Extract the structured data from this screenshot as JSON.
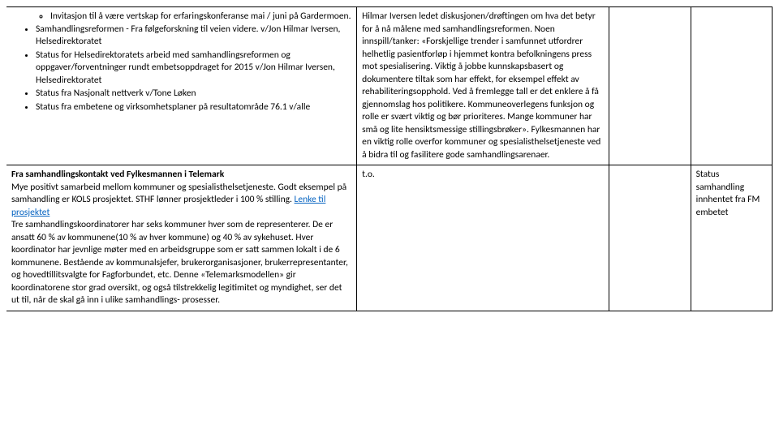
{
  "row1": {
    "col1": {
      "sub_item": "Invitasjon til å være vertskap for erfaringskonferanse mai / juni på Gardermoen.",
      "bullets": [
        "Samhandlingsreformen - Fra følgeforskning til veien videre. v/Jon Hilmar Iversen, Helsedirektoratet",
        "Status for Helsedirektoratets arbeid med samhandlingsreformen og oppgaver/forventninger rundt embetsoppdraget for 2015 v/Jon Hilmar Iversen, Helsedirektoratet",
        "Status fra Nasjonalt nettverk v/Tone Løken",
        "Status fra embetene og virksomhetsplaner på resultatområde 76.1 v/alle"
      ]
    },
    "col2": "Hilmar Iversen ledet diskusjonen/drøftingen om hva det betyr for å nå målene med samhandlingsreformen. Noen innspill/tanker: «Forskjellige trender i samfunnet utfordrer helhetlig pasientforløp i hjemmet kontra befolkningens press mot spesialisering. Viktig å jobbe kunnskapsbasert og dokumentere tiltak som har effekt, for eksempel effekt av rehabiliteringsopphold. Ved å fremlegge tall er det enklere å få gjennomslag hos politikere. Kommuneoverlegens funksjon og rolle er svært viktig og bør prioriteres. Mange kommuner har små og lite hensiktsmessige stillingsbrøker». Fylkesmannen har en viktig rolle overfor kommuner og spesialisthelsetjeneste ved å bidra til og fasilitere gode samhandlingsarenaer."
  },
  "row2": {
    "col1": {
      "heading": "Fra samhandlingskontakt ved Fylkesmannen i Telemark",
      "text_before_link": "Mye positivt samarbeid mellom kommuner og spesialisthelsetjeneste. Godt eksempel på samhandling er KOLS prosjektet. STHF lønner prosjektleder i 100 % stilling. ",
      "link_text": "Lenke til prosjektet",
      "text_after_link": "Tre samhandlingskoordinatorer har seks kommuner hver som de representerer. De er ansatt 60 % av kommunene(10 % av hver kommune) og 40 % av sykehuset. Hver koordinator har jevnlige møter med en arbeidsgruppe som er satt sammen lokalt i de 6 kommunene. Bestående av kommunalsjefer, brukerorganisasjoner, brukerrepresentanter, og hovedtillitsvalgte for Fagforbundet, etc. Denne «Telemarksmodellen» gir koordinatorene stor grad oversikt, og også tilstrekkelig legitimitet og myndighet, ser det ut til, når de skal gå inn i ulike samhandlings- prosesser."
    },
    "col2": "t.o.",
    "col4": "Status samhandling innhentet fra FM embetet"
  }
}
